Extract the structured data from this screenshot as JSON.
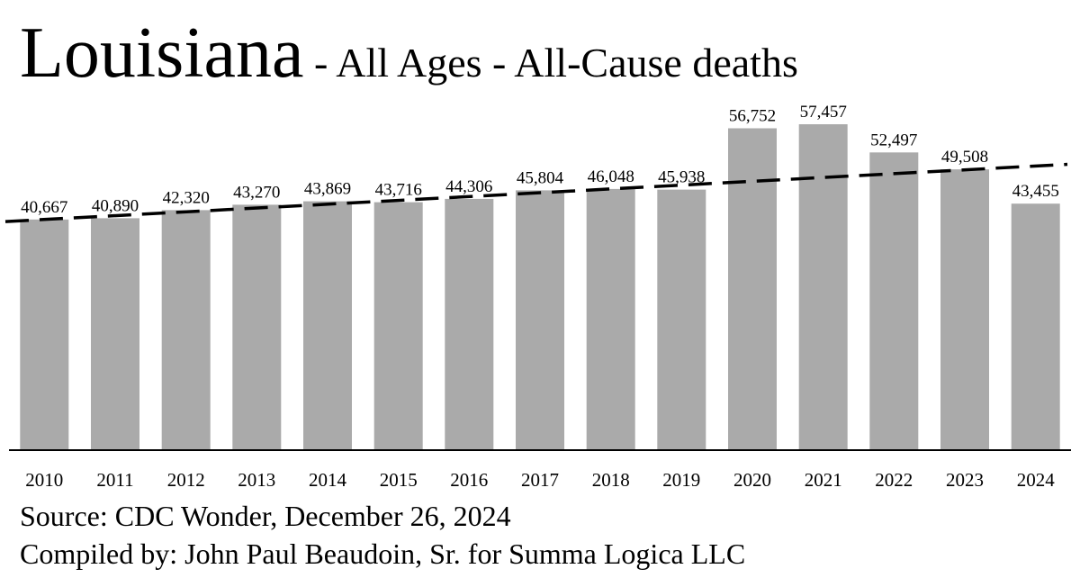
{
  "title": {
    "main": "Louisiana",
    "sub": " - All Ages - All-Cause deaths"
  },
  "footer": {
    "source": "Source:  CDC Wonder, December 26, 2024",
    "compiled": "Compiled by:  John Paul Beaudoin, Sr. for Summa Logica LLC"
  },
  "colors": {
    "bar": "#aaaaaa",
    "trend": "#000000",
    "axis": "#000000"
  },
  "chart_data": {
    "type": "bar",
    "title": "Louisiana - All Ages - All-Cause deaths",
    "xlabel": "",
    "ylabel": "",
    "categories": [
      "2010",
      "2011",
      "2012",
      "2013",
      "2014",
      "2015",
      "2016",
      "2017",
      "2018",
      "2019",
      "2020",
      "2021",
      "2022",
      "2023",
      "2024"
    ],
    "values": [
      40667,
      40890,
      42320,
      43270,
      43869,
      43716,
      44306,
      45804,
      46048,
      45938,
      56752,
      57457,
      52497,
      49508,
      43455
    ],
    "value_labels": [
      "40,667",
      "40,890",
      "42,320",
      "43,270",
      "43,869",
      "43,716",
      "44,306",
      "45,804",
      "46,048",
      "45,938",
      "56,752",
      "57,457",
      "52,497",
      "49,508",
      "43,455"
    ],
    "ylim": [
      0,
      60000
    ],
    "trendline": {
      "style": "dashed",
      "start_value": 40300,
      "end_value": 50400
    },
    "grid": false,
    "legend": "none"
  }
}
